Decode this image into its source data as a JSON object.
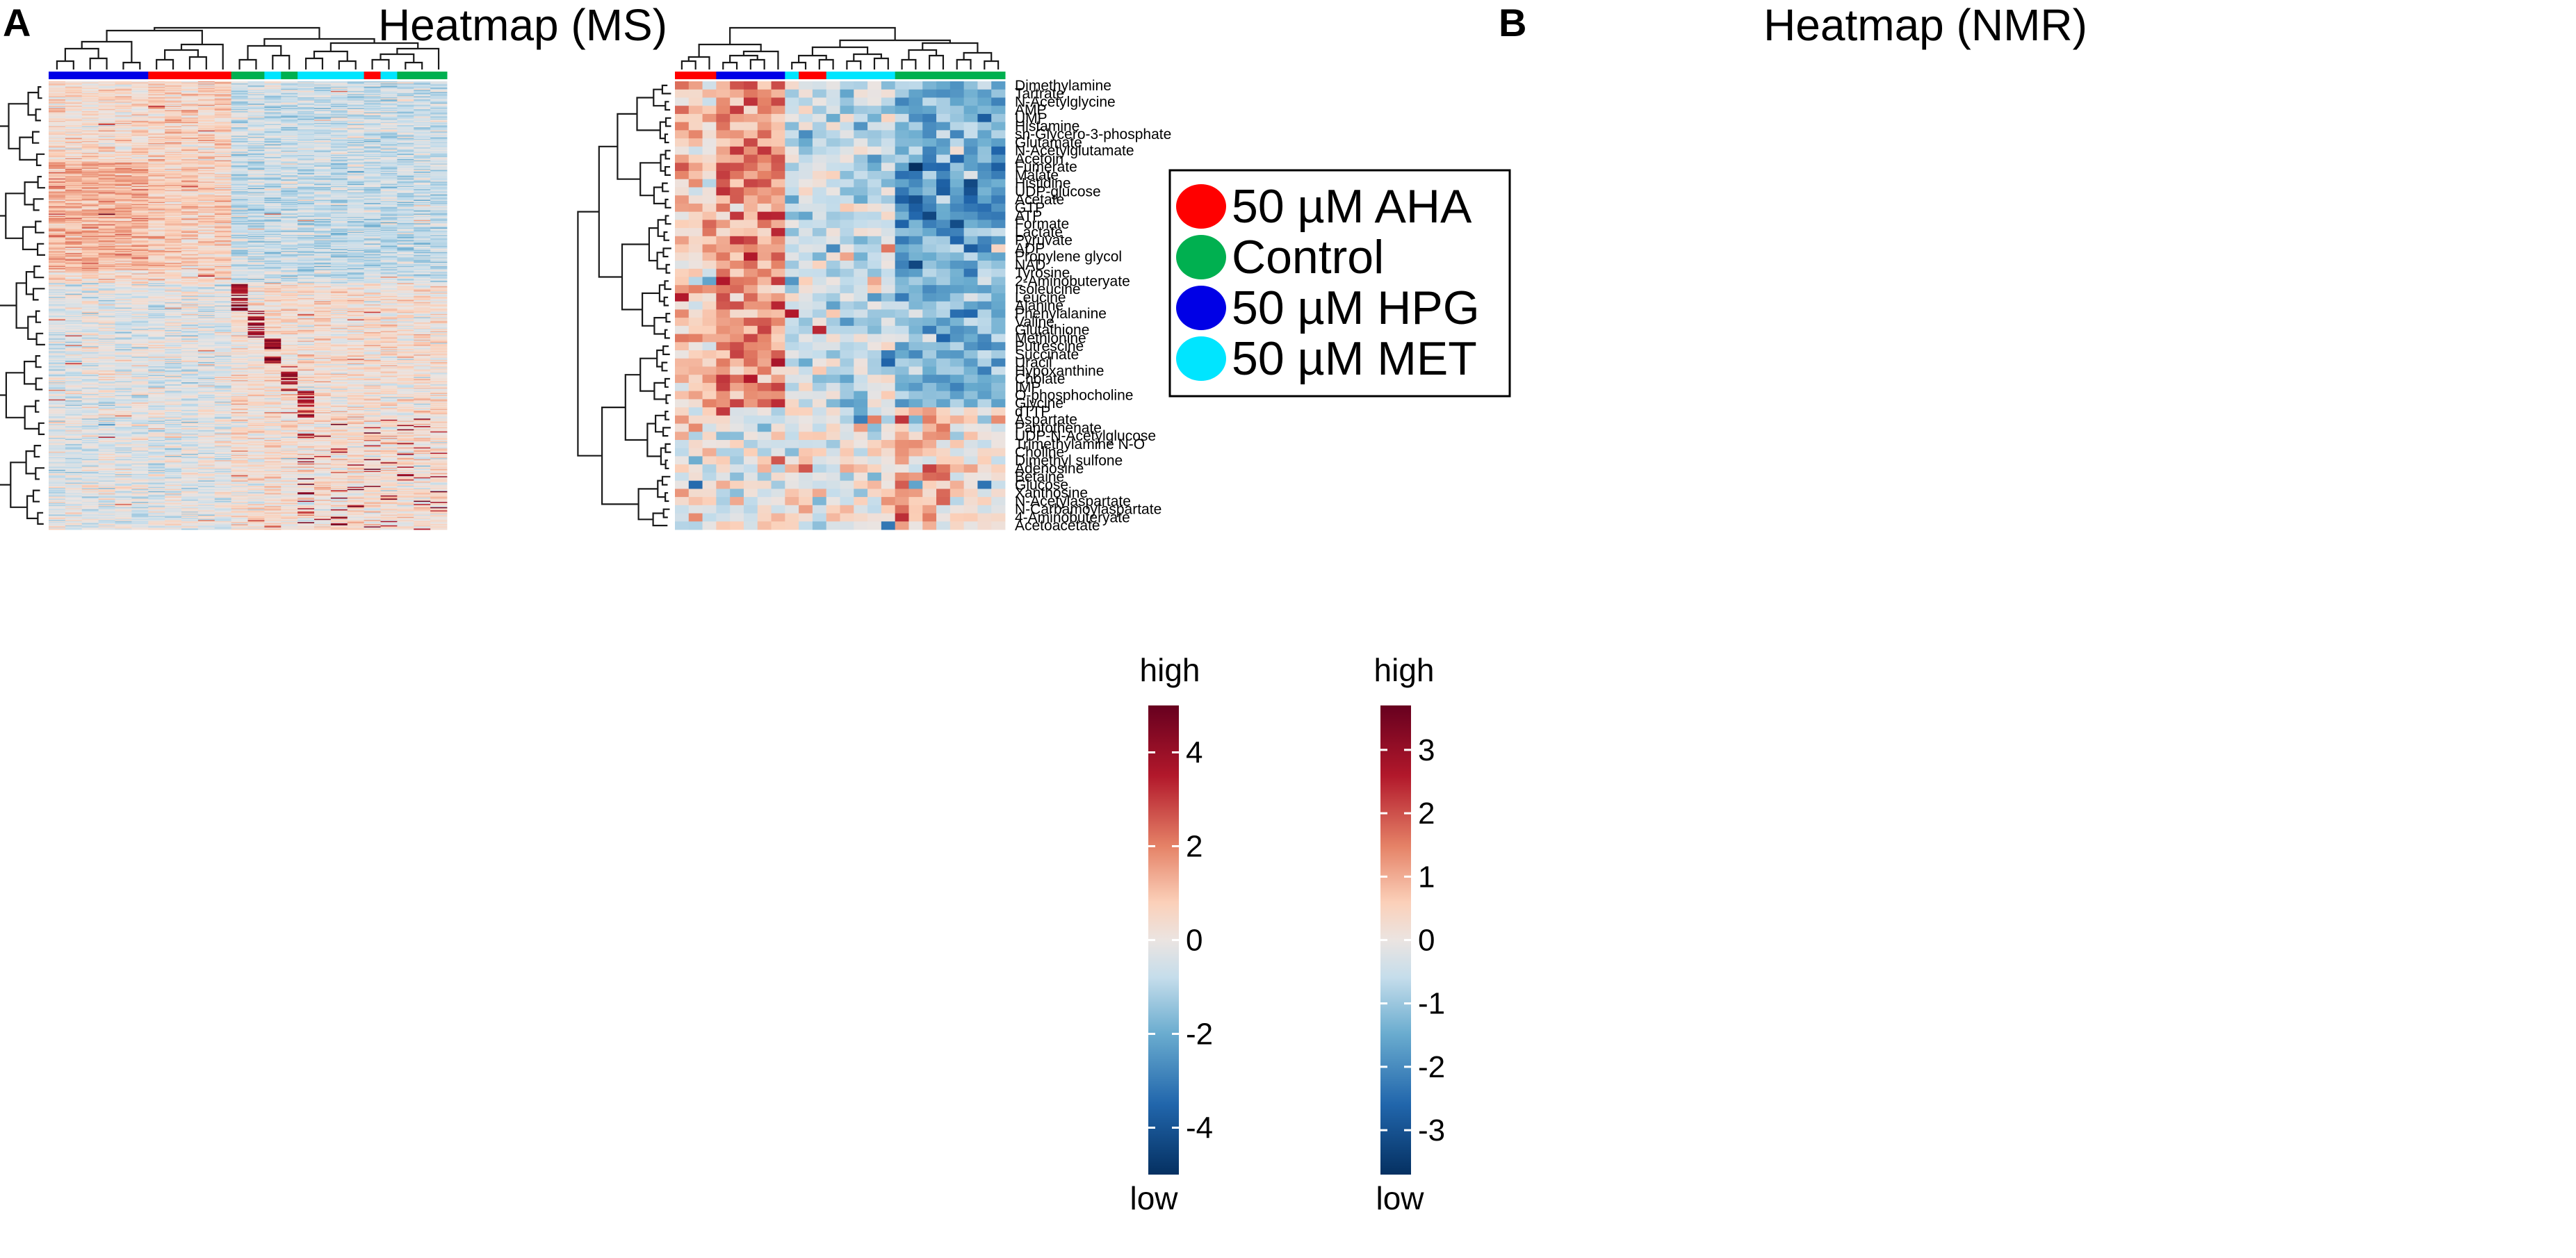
{
  "chart_data": [
    {
      "panel": "A",
      "type": "heatmap",
      "title": "Heatmap (MS)",
      "rows_count": 420,
      "columns_count": 24,
      "column_groups": [
        "50 µM HPG",
        "50 µM HPG",
        "50 µM HPG",
        "50 µM HPG",
        "50 µM HPG",
        "50 µM HPG",
        "50 µM AHA",
        "50 µM AHA",
        "50 µM AHA",
        "50 µM AHA",
        "50 µM AHA",
        "Control",
        "Control",
        "50 µM MET",
        "Control",
        "50 µM MET",
        "50 µM MET",
        "50 µM MET",
        "50 µM MET",
        "50 µM AHA",
        "50 µM MET",
        "Control",
        "Control",
        "Control"
      ],
      "colorbar": {
        "ticks": [
          4,
          2,
          0,
          -2,
          -4
        ],
        "range": [
          -5,
          5
        ],
        "high_label": "high",
        "low_label": "low"
      }
    },
    {
      "panel": "B",
      "type": "heatmap",
      "title": "Heatmap (NMR)",
      "rows": [
        "Dimethylamine",
        "Tartrate",
        "N-Acetylglycine",
        "AMP",
        "UMP",
        "Histamine",
        "sn-Glycero-3-phosphate",
        "Glutamate",
        "N-Acetylglutamate",
        "Acetoin",
        "Fumerate",
        "Malate",
        "Histidine",
        "UDP-glucose",
        "Acetate",
        "GTP",
        "ATP",
        "Formate",
        "Lactate",
        "Pyruvate",
        "ADP",
        "Propylene glycol",
        "NAD",
        "Tyrosine",
        "2-Aminobuteryate",
        "Isoleucine",
        "Leucine",
        "Alanine",
        "Phenylalanine",
        "Valine",
        "Glutathione",
        "Methionine",
        "Putrescine",
        "Succinate",
        "Uracil",
        "Hypoxanthine",
        "Cholate",
        "IMP",
        "O-phosphocholine",
        "Glycine",
        "dTTP",
        "Aspartate",
        "Pantothenate",
        "UDP-N-Acetylglucose",
        "Trimethylamine N-O",
        "Choline",
        "Dimethyl sulfone",
        "Adenosine",
        "Betaine",
        "Glucose",
        "Xanthosine",
        "N-Acetylaspartate",
        "N-Carbamoylaspartate",
        "4-Aminobuteryate",
        "Acetoacetate"
      ],
      "columns_count": 24,
      "column_groups": [
        "50 µM AHA",
        "50 µM AHA",
        "50 µM AHA",
        "50 µM HPG",
        "50 µM HPG",
        "50 µM HPG",
        "50 µM HPG",
        "50 µM HPG",
        "50 µM MET",
        "50 µM AHA",
        "50 µM AHA",
        "50 µM MET",
        "50 µM MET",
        "50 µM MET",
        "50 µM MET",
        "50 µM MET",
        "Control",
        "Control",
        "Control",
        "Control",
        "Control",
        "Control",
        "Control",
        "Control"
      ],
      "colorbar": {
        "ticks": [
          3,
          2,
          1,
          0,
          -1,
          -2,
          -3
        ],
        "range": [
          -3.7,
          3.7
        ],
        "high_label": "high",
        "low_label": "low"
      }
    }
  ],
  "legend": [
    {
      "label": "50 µM AHA",
      "color": "#ff0000"
    },
    {
      "label": "Control",
      "color": "#00b050"
    },
    {
      "label": "50 µM HPG",
      "color": "#0000e6"
    },
    {
      "label": "50 µM MET",
      "color": "#00e5ff"
    }
  ],
  "panel_letters": {
    "a": "A",
    "b": "B"
  },
  "group_colors": {
    "50 µM AHA": "#ff0000",
    "Control": "#00b050",
    "50 µM HPG": "#0000e6",
    "50 µM MET": "#00e5ff"
  }
}
